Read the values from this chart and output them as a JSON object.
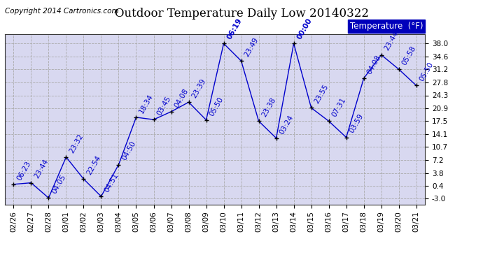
{
  "title": "Outdoor Temperature Daily Low 20140322",
  "copyright": "Copyright 2014 Cartronics.com",
  "legend_label": "Temperature  (°F)",
  "dates": [
    "02/26",
    "02/27",
    "02/28",
    "03/01",
    "03/02",
    "03/03",
    "03/04",
    "03/05",
    "03/06",
    "03/07",
    "03/08",
    "03/09",
    "03/10",
    "03/11",
    "03/12",
    "03/13",
    "03/14",
    "03/15",
    "03/16",
    "03/17",
    "03/18",
    "03/19",
    "03/20",
    "03/21"
  ],
  "temps": [
    0.8,
    1.2,
    -2.8,
    8.0,
    2.2,
    -2.4,
    6.0,
    18.5,
    17.9,
    20.0,
    22.5,
    17.8,
    38.0,
    33.4,
    17.5,
    13.0,
    38.0,
    21.0,
    17.5,
    13.2,
    28.8,
    35.0,
    31.2,
    26.9
  ],
  "time_labels": [
    "06:23",
    "23:44",
    "04:05",
    "23:32",
    "22:54",
    "04:51",
    "04:50",
    "18:34",
    "03:45",
    "04:08",
    "23:39",
    "05:50",
    "06:19",
    "23:49",
    "23:38",
    "03:24",
    "00:00",
    "23:55",
    "07:31",
    "03:59",
    "04:08",
    "23:44",
    "05:58",
    "05:50"
  ],
  "highlight_times": [
    "06:19",
    "00:00"
  ],
  "yticks": [
    -3.0,
    0.4,
    3.8,
    7.2,
    10.7,
    14.1,
    17.5,
    20.9,
    24.3,
    27.8,
    31.2,
    34.6,
    38.0
  ],
  "ylim": [
    -4.5,
    40.5
  ],
  "line_color": "#0000CC",
  "marker_color": "#000000",
  "bg_color": "#FFFFFF",
  "plot_bg_color": "#D8D8F0",
  "grid_color": "#AAAAAA",
  "title_fontsize": 12,
  "label_fontsize": 7.5,
  "tick_fontsize": 7.5,
  "copyright_fontsize": 7.5,
  "legend_fontsize": 8.5
}
